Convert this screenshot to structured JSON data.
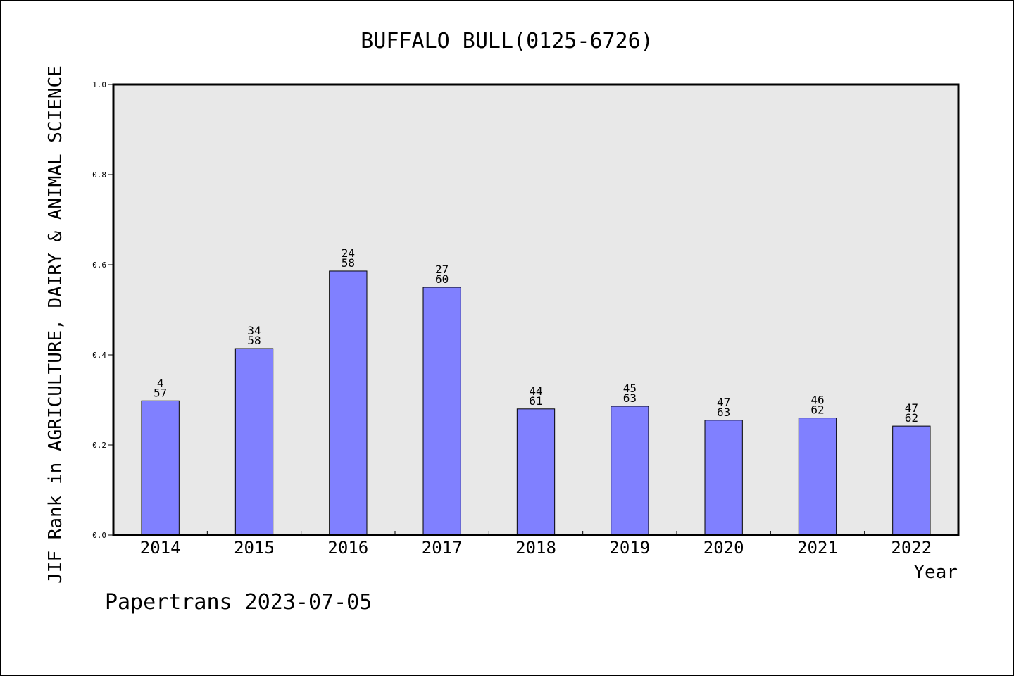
{
  "chart_data": {
    "type": "bar",
    "title": "BUFFALO BULL(0125-6726)",
    "xlabel": "Year",
    "ylabel": "JIF Rank in AGRICULTURE, DAIRY & ANIMAL SCIENCE",
    "categories": [
      "2014",
      "2015",
      "2016",
      "2017",
      "2018",
      "2019",
      "2020",
      "2021",
      "2022"
    ],
    "values": [
      0.298,
      0.414,
      0.586,
      0.55,
      0.28,
      0.286,
      0.255,
      0.26,
      0.242
    ],
    "bar_labels": [
      {
        "rank": "4",
        "total": "57"
      },
      {
        "rank": "34",
        "total": "58"
      },
      {
        "rank": "24",
        "total": "58"
      },
      {
        "rank": "27",
        "total": "60"
      },
      {
        "rank": "44",
        "total": "61"
      },
      {
        "rank": "45",
        "total": "63"
      },
      {
        "rank": "47",
        "total": "63"
      },
      {
        "rank": "46",
        "total": "62"
      },
      {
        "rank": "47",
        "total": "62"
      }
    ],
    "ylim": [
      0.0,
      1.0
    ],
    "yticks": [
      "0.0",
      "0.2",
      "0.4",
      "0.6",
      "0.8",
      "1.0"
    ],
    "grid": false,
    "colors": {
      "bar": "#8080ff",
      "plot_background": "#e8e8e8"
    }
  },
  "footer": {
    "text": "Papertrans 2023-07-05"
  }
}
